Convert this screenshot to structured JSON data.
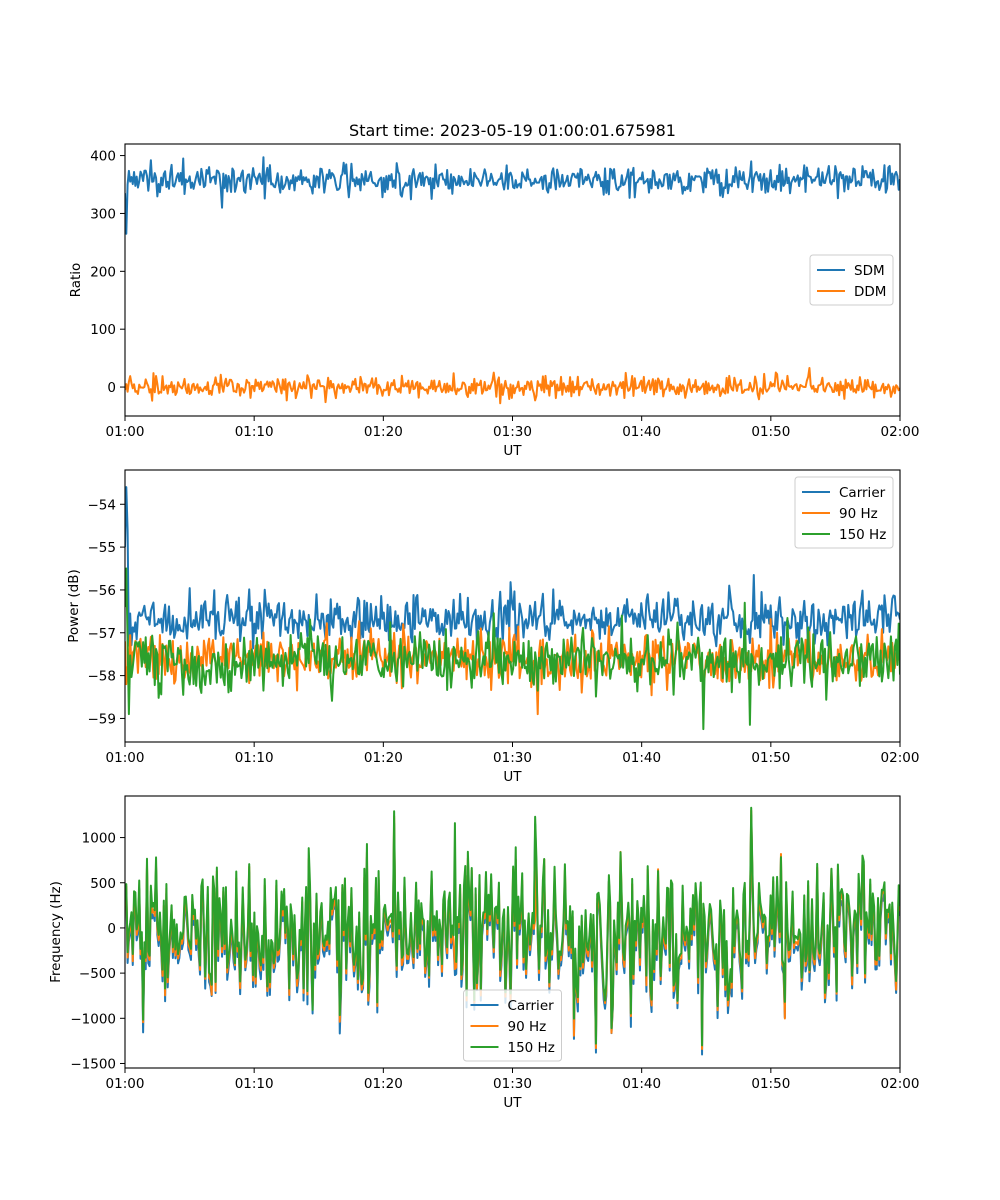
{
  "chart_data": [
    {
      "type": "line",
      "title": "Start time: 2023-05-19 01:00:01.675981",
      "xlabel": "UT",
      "ylabel": "Ratio",
      "x_range": [
        "01:00",
        "02:00"
      ],
      "x_ticks": [
        "01:00",
        "01:10",
        "01:20",
        "01:30",
        "01:40",
        "01:50",
        "02:00"
      ],
      "ylim": [
        -50,
        420
      ],
      "y_ticks": [
        "0",
        "100",
        "200",
        "300",
        "400"
      ],
      "y_tick_values": [
        0,
        100,
        200,
        300,
        400
      ],
      "legend_position": "center-right",
      "series": [
        {
          "name": "SDM",
          "color": "#1f77b4",
          "mean": 358,
          "noise": 13,
          "start": [
            335,
            265,
            350
          ],
          "dips": [
            {
              "t": 7.5,
              "v": 310
            }
          ],
          "peaks": [
            {
              "t": 4.5,
              "v": 395
            },
            {
              "t": 48.5,
              "v": 390
            }
          ]
        },
        {
          "name": "DDM",
          "color": "#ff7f0e",
          "mean": 0,
          "noise": 9,
          "start": [
            -5,
            5,
            -8
          ],
          "dips": [
            {
              "t": 29.0,
              "v": -28
            },
            {
              "t": 15.5,
              "v": -26
            }
          ],
          "peaks": [
            {
              "t": 53.0,
              "v": 33
            },
            {
              "t": 28.5,
              "v": 25
            }
          ]
        }
      ]
    },
    {
      "type": "line",
      "title": "",
      "xlabel": "UT",
      "ylabel": "Power (dB)",
      "x_range": [
        "01:00",
        "02:00"
      ],
      "x_ticks": [
        "01:00",
        "01:10",
        "01:20",
        "01:30",
        "01:40",
        "01:50",
        "02:00"
      ],
      "ylim": [
        -59.55,
        -53.2
      ],
      "y_ticks": [
        "−54",
        "−55",
        "−56",
        "−57",
        "−58",
        "−59"
      ],
      "y_tick_values": [
        -54,
        -55,
        -56,
        -57,
        -58,
        -59
      ],
      "legend_position": "top-right",
      "series": [
        {
          "name": "Carrier",
          "color": "#1f77b4",
          "mean": -56.7,
          "noise": 0.28,
          "start": [
            -55.0,
            -53.6,
            -54.6,
            -57.3
          ],
          "dips": [],
          "peaks": [
            {
              "t": 48.7,
              "v": -55.65
            },
            {
              "t": 46.8,
              "v": -55.9
            }
          ]
        },
        {
          "name": "90 Hz",
          "color": "#ff7f0e",
          "mean": -57.6,
          "noise": 0.3,
          "start": [
            -57.2,
            -58.2,
            -57.8
          ],
          "dips": [
            {
              "t": 32.0,
              "v": -58.9
            }
          ],
          "peaks": [
            {
              "t": 27.5,
              "v": -56.9
            }
          ]
        },
        {
          "name": "150 Hz",
          "color": "#2ca02c",
          "mean": -57.65,
          "noise": 0.33,
          "start": [
            -56.4,
            -55.5,
            -57.2,
            -58.9
          ],
          "dips": [
            {
              "t": 44.8,
              "v": -59.25
            },
            {
              "t": 48.4,
              "v": -59.15
            }
          ],
          "peaks": [
            {
              "t": 48.0,
              "v": -56.3
            },
            {
              "t": 38.5,
              "v": -56.6
            }
          ]
        }
      ]
    },
    {
      "type": "line",
      "title": "",
      "xlabel": "UT",
      "ylabel": "Frequency (Hz)",
      "x_range": [
        "01:00",
        "02:00"
      ],
      "x_ticks": [
        "01:00",
        "01:10",
        "01:20",
        "01:30",
        "01:40",
        "01:50",
        "02:00"
      ],
      "ylim": [
        -1550,
        1460
      ],
      "y_ticks": [
        "1000",
        "500",
        "0",
        "−500",
        "−1000",
        "−1500"
      ],
      "y_tick_values": [
        1000,
        500,
        0,
        -500,
        -1000,
        -1500
      ],
      "legend_position": "bottom-center",
      "series": [
        {
          "name": "Carrier",
          "color": "#1f77b4",
          "mean": -40,
          "noise": 380,
          "offset": -80,
          "start": [],
          "dips": [
            {
              "t": 36.5,
              "v": -1380
            },
            {
              "t": 44.7,
              "v": -1400
            }
          ],
          "peaks": [
            {
              "t": 48.5,
              "v": 1250
            },
            {
              "t": 31.8,
              "v": 1150
            }
          ]
        },
        {
          "name": "90 Hz",
          "color": "#ff7f0e",
          "mean": -20,
          "noise": 380,
          "offset": -40,
          "start": [],
          "dips": [
            {
              "t": 36.5,
              "v": -1330
            },
            {
              "t": 44.7,
              "v": -1340
            }
          ],
          "peaks": [
            {
              "t": 48.5,
              "v": 1300
            }
          ]
        },
        {
          "name": "150 Hz",
          "color": "#2ca02c",
          "mean": 0,
          "noise": 380,
          "offset": 0,
          "start": [],
          "dips": [
            {
              "t": 36.5,
              "v": -1280
            },
            {
              "t": 44.7,
              "v": -1300
            }
          ],
          "peaks": [
            {
              "t": 48.5,
              "v": 1330
            },
            {
              "t": 31.8,
              "v": 1230
            },
            {
              "t": 25.5,
              "v": 1160
            }
          ]
        }
      ]
    }
  ]
}
